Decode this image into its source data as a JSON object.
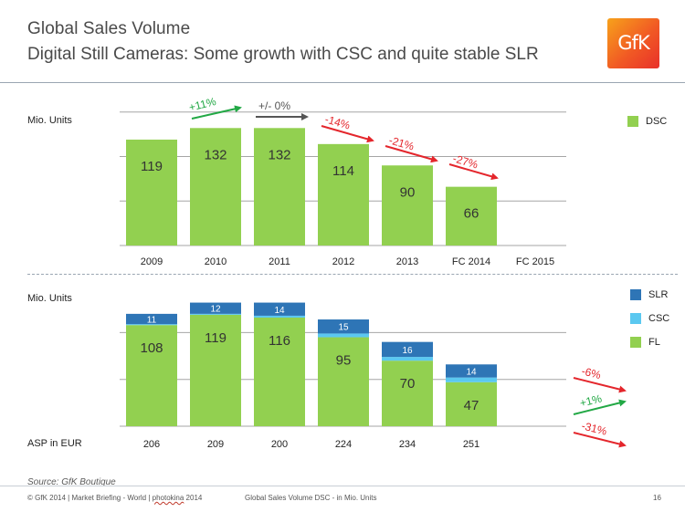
{
  "header": {
    "title": "Global Sales Volume",
    "subtitle": "Digital Still Cameras: Some growth with CSC and quite stable SLR",
    "logo_text": "GfK"
  },
  "top_chart": {
    "unit_label": "Mio. Units",
    "legend": [
      {
        "label": "DSC",
        "color": "#92d050"
      }
    ],
    "growth_annotations": [
      "+11%",
      "+/- 0%",
      "-14%",
      "-21%",
      "-27%"
    ]
  },
  "bottom_chart": {
    "unit_label": "Mio. Units",
    "asp_label": "ASP in EUR",
    "asp_values": [
      "206",
      "209",
      "200",
      "224",
      "234",
      "251"
    ],
    "legend": [
      {
        "label": "SLR",
        "color": "#2e75b6"
      },
      {
        "label": "CSC",
        "color": "#5bc8f0"
      },
      {
        "label": "FL",
        "color": "#92d050"
      }
    ],
    "growth_annotations": [
      "-6%",
      "+1%",
      "-31%"
    ]
  },
  "chart_data": [
    {
      "type": "bar",
      "categories": [
        "2009",
        "2010",
        "2011",
        "2012",
        "2013",
        "FC 2014",
        "FC 2015"
      ],
      "series": [
        {
          "name": "DSC",
          "values": [
            119,
            132,
            132,
            114,
            90,
            66,
            null
          ]
        }
      ],
      "ylabel": "Mio. Units",
      "ylim": [
        0,
        140
      ],
      "grid": true
    },
    {
      "type": "bar",
      "stacked": true,
      "categories": [
        "2009",
        "2010",
        "2011",
        "2012",
        "2013",
        "FC 2014",
        "FC 2015"
      ],
      "series": [
        {
          "name": "FL",
          "values": [
            108,
            119,
            116,
            95,
            70,
            47,
            null
          ]
        },
        {
          "name": "CSC",
          "values": [
            1,
            1,
            2,
            4,
            4,
            5,
            null
          ]
        },
        {
          "name": "SLR",
          "values": [
            11,
            12,
            14,
            15,
            16,
            14,
            null
          ]
        }
      ],
      "ylabel": "Mio. Units",
      "ylim": [
        0,
        140
      ],
      "grid": true
    }
  ],
  "footer": {
    "source": "Source: GfK Boutique",
    "left_text": "© GfK 2014 | Market Briefing - World | ",
    "left_underlined": "photokina",
    "left_year": " 2014",
    "center": "Global Sales Volume DSC - in Mio. Units",
    "page": "16"
  },
  "colors": {
    "green": "#92d050",
    "csc": "#5bc8f0",
    "slr": "#2e75b6",
    "grid": "#a6a6a6",
    "up": "#22a845",
    "down": "#e4262c",
    "flat": "#555555"
  }
}
